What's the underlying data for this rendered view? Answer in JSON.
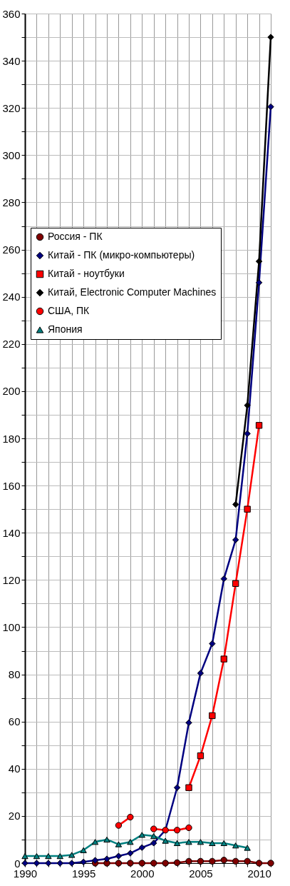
{
  "chart_data": {
    "type": "line",
    "xlim": [
      1990,
      2011
    ],
    "xticks": [
      1990,
      {
        "value": 1991,
        "label": null
      },
      {
        "value": 1992,
        "label": null
      },
      {
        "value": 1993,
        "label": null
      },
      {
        "value": 1994,
        "label": null
      },
      1995,
      {
        "value": 1996,
        "label": null
      },
      {
        "value": 1997,
        "label": null
      },
      {
        "value": 1998,
        "label": null
      },
      {
        "value": 1999,
        "label": null
      },
      2000,
      {
        "value": 2001,
        "label": null
      },
      {
        "value": 2002,
        "label": null
      },
      {
        "value": 2003,
        "label": null
      },
      {
        "value": 2004,
        "label": null
      },
      2005,
      {
        "value": 2006,
        "label": null
      },
      {
        "value": 2007,
        "label": null
      },
      {
        "value": 2008,
        "label": null
      },
      {
        "value": 2009,
        "label": null
      },
      2010,
      {
        "value": 2011,
        "label": null
      }
    ],
    "ylim": [
      0,
      360
    ],
    "yticks": [
      0,
      {
        "value": 10,
        "label": null
      },
      20,
      {
        "value": 30,
        "label": null
      },
      40,
      {
        "value": 50,
        "label": null
      },
      60,
      {
        "value": 70,
        "label": null
      },
      80,
      {
        "value": 90,
        "label": null
      },
      100,
      {
        "value": 110,
        "label": null
      },
      120,
      {
        "value": 130,
        "label": null
      },
      140,
      {
        "value": 150,
        "label": null
      },
      160,
      {
        "value": 170,
        "label": null
      },
      180,
      {
        "value": 190,
        "label": null
      },
      200,
      {
        "value": 210,
        "label": null
      },
      220,
      {
        "value": 230,
        "label": null
      },
      240,
      {
        "value": 250,
        "label": null
      },
      260,
      {
        "value": 270,
        "label": null
      },
      280,
      {
        "value": 290,
        "label": null
      },
      300,
      {
        "value": 310,
        "label": null
      },
      320,
      {
        "value": 330,
        "label": null
      },
      340,
      {
        "value": 350,
        "label": null
      },
      360
    ],
    "grid": true,
    "legend": "left",
    "series": [
      {
        "name": "Россия - ПК",
        "color": "#800000",
        "marker": "circle",
        "x": [
          1996,
          1997,
          1998,
          1999,
          2000,
          2001,
          2002,
          2003,
          2004,
          2005,
          2006,
          2007,
          2008,
          2009,
          2010,
          2011
        ],
        "values": [
          0,
          0,
          0,
          0,
          0,
          0,
          0,
          0.2,
          0.8,
          0.8,
          0.8,
          1.3,
          0.8,
          0.8,
          0,
          0
        ]
      },
      {
        "name": "Китай - ПК (микро-компьютеры)",
        "color": "#000080",
        "marker": "diamond",
        "x": [
          1990,
          1991,
          1992,
          1993,
          1994,
          1995,
          1996,
          1997,
          1998,
          1999,
          2000,
          2001,
          2002,
          2003,
          2004,
          2005,
          2006,
          2007,
          2008,
          2009,
          2010,
          2011
        ],
        "values": [
          0,
          0,
          0,
          0,
          0,
          0.5,
          1.2,
          1.8,
          3,
          4.2,
          6.6,
          8.5,
          14,
          32,
          59.5,
          80.5,
          93,
          120.5,
          137,
          182,
          246,
          320.5
        ]
      },
      {
        "name": "Китай - ноутбуки",
        "color": "#ff0000",
        "marker": "square",
        "x": [
          2004,
          2005,
          2006,
          2007,
          2008,
          2009,
          2010
        ],
        "values": [
          32,
          45.5,
          62.5,
          86.5,
          118.5,
          150,
          185.5
        ]
      },
      {
        "name": "Китай, Electronic Computer Machines",
        "color": "#000000",
        "marker": "diamond",
        "x": [
          2008,
          2009,
          2010,
          2011
        ],
        "values": [
          152,
          194,
          255,
          350
        ]
      },
      {
        "name": "США, ПК",
        "color": "#ff0000",
        "marker": "circle",
        "x": [
          1998,
          1999,
          2000,
          2001,
          2002,
          2003,
          2004
        ],
        "values": [
          16,
          19.5,
          null,
          14.5,
          14,
          14,
          15
        ]
      },
      {
        "name": "Япония",
        "color": "#008080",
        "marker": "triangle",
        "x": [
          1990,
          1991,
          1992,
          1993,
          1994,
          1995,
          1996,
          1997,
          1998,
          1999,
          2000,
          2001,
          2002,
          2003,
          2004,
          2005,
          2006,
          2007,
          2008,
          2009
        ],
        "values": [
          3,
          3,
          3,
          3,
          3.5,
          5.5,
          9,
          10,
          8,
          9,
          12,
          11.5,
          9.5,
          8.5,
          9,
          9,
          8.5,
          8.5,
          7.5,
          6.5
        ]
      }
    ]
  }
}
